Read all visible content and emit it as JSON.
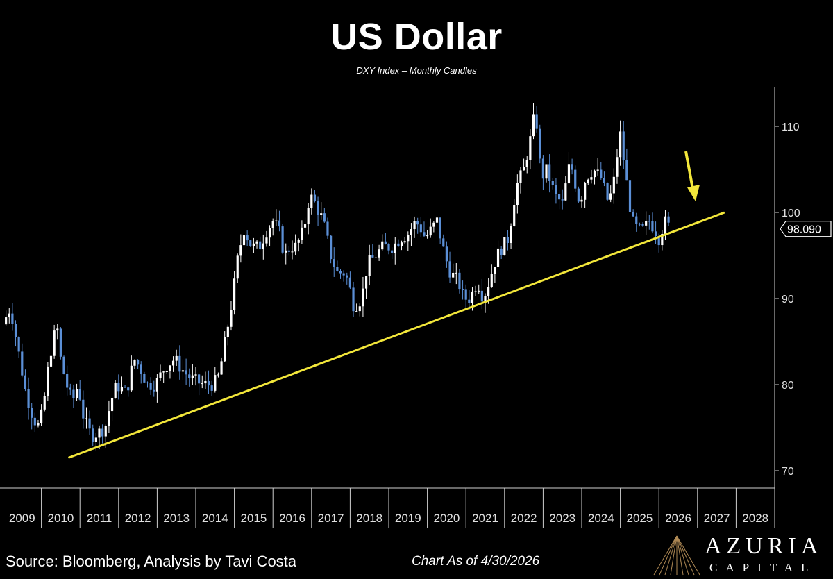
{
  "header": {
    "title": "US Dollar",
    "subtitle": "DXY Index – Monthly Candles"
  },
  "footer": {
    "source": "Source: Bloomberg, Analysis by Tavi Costa",
    "as_of": "Chart As of 4/30/2026",
    "logo_word": "AZURIA",
    "logo_sub": "CAPITAL"
  },
  "colors": {
    "background": "#000000",
    "up_candle": "#ffffff",
    "down_candle": "#5b8fd6",
    "trendline": "#f2e63a",
    "arrow": "#f2e63a",
    "axis": "#cfcfcf"
  },
  "chart_data": {
    "type": "candlestick",
    "x_ticks": [
      "2009",
      "2010",
      "2011",
      "2012",
      "2013",
      "2014",
      "2015",
      "2016",
      "2017",
      "2018",
      "2019",
      "2020",
      "2021",
      "2022",
      "2023",
      "2024",
      "2025",
      "2026",
      "2027",
      "2028"
    ],
    "y_ticks": [
      70,
      80,
      90,
      100,
      110
    ],
    "ylim": [
      68,
      114
    ],
    "xlim": [
      2009.0,
      2029.0
    ],
    "last_value_label": "98.090",
    "last_value": 98.09,
    "y_axis_side": "right",
    "grid": false,
    "series": {
      "approximate_monthly_close": [
        [
          2009.0,
          87
        ],
        [
          2009.2,
          89
        ],
        [
          2009.4,
          84
        ],
        [
          2009.6,
          79
        ],
        [
          2009.8,
          76
        ],
        [
          2009.95,
          75
        ],
        [
          2010.1,
          79
        ],
        [
          2010.2,
          83
        ],
        [
          2010.4,
          87
        ],
        [
          2010.5,
          83
        ],
        [
          2010.65,
          80
        ],
        [
          2010.8,
          78
        ],
        [
          2010.95,
          80
        ],
        [
          2011.1,
          76
        ],
        [
          2011.3,
          74
        ],
        [
          2011.5,
          74.5
        ],
        [
          2011.65,
          75
        ],
        [
          2011.8,
          78
        ],
        [
          2011.95,
          80
        ],
        [
          2012.2,
          79
        ],
        [
          2012.4,
          83
        ],
        [
          2012.55,
          82
        ],
        [
          2012.75,
          80
        ],
        [
          2012.95,
          80
        ],
        [
          2013.2,
          82
        ],
        [
          2013.45,
          83
        ],
        [
          2013.6,
          82
        ],
        [
          2013.8,
          81
        ],
        [
          2013.95,
          80.5
        ],
        [
          2014.2,
          80
        ],
        [
          2014.45,
          80
        ],
        [
          2014.6,
          81
        ],
        [
          2014.8,
          86
        ],
        [
          2014.95,
          90
        ],
        [
          2015.1,
          95
        ],
        [
          2015.25,
          98
        ],
        [
          2015.45,
          96
        ],
        [
          2015.65,
          96
        ],
        [
          2015.85,
          98
        ],
        [
          2016.0,
          99
        ],
        [
          2016.15,
          98
        ],
        [
          2016.3,
          95
        ],
        [
          2016.45,
          96
        ],
        [
          2016.6,
          96
        ],
        [
          2016.8,
          98
        ],
        [
          2016.95,
          102
        ],
        [
          2017.1,
          101
        ],
        [
          2017.3,
          99
        ],
        [
          2017.5,
          95
        ],
        [
          2017.65,
          93
        ],
        [
          2017.85,
          93
        ],
        [
          2017.95,
          92
        ],
        [
          2018.1,
          89
        ],
        [
          2018.3,
          90
        ],
        [
          2018.45,
          94
        ],
        [
          2018.65,
          95
        ],
        [
          2018.85,
          96
        ],
        [
          2019.1,
          96
        ],
        [
          2019.3,
          97
        ],
        [
          2019.5,
          97.5
        ],
        [
          2019.7,
          99
        ],
        [
          2019.85,
          98
        ],
        [
          2019.95,
          97
        ],
        [
          2020.1,
          98
        ],
        [
          2020.25,
          99
        ],
        [
          2020.45,
          95
        ],
        [
          2020.6,
          93
        ],
        [
          2020.8,
          92
        ],
        [
          2020.95,
          90
        ],
        [
          2021.1,
          90
        ],
        [
          2021.3,
          92
        ],
        [
          2021.45,
          90
        ],
        [
          2021.6,
          92
        ],
        [
          2021.8,
          95
        ],
        [
          2021.95,
          96
        ],
        [
          2022.1,
          97
        ],
        [
          2022.3,
          103
        ],
        [
          2022.5,
          105
        ],
        [
          2022.65,
          108
        ],
        [
          2022.8,
          112
        ],
        [
          2022.95,
          104
        ],
        [
          2023.1,
          105
        ],
        [
          2023.3,
          102
        ],
        [
          2023.5,
          101
        ],
        [
          2023.7,
          106
        ],
        [
          2023.85,
          103
        ],
        [
          2023.95,
          101
        ],
        [
          2024.1,
          104
        ],
        [
          2024.3,
          105
        ],
        [
          2024.5,
          104
        ],
        [
          2024.7,
          101
        ],
        [
          2024.85,
          104
        ],
        [
          2024.95,
          108
        ],
        [
          2025.0,
          109
        ],
        [
          2025.15,
          104
        ],
        [
          2025.3,
          99
        ],
        [
          2025.45,
          98
        ],
        [
          2025.6,
          98
        ],
        [
          2025.75,
          99
        ],
        [
          2025.9,
          98
        ],
        [
          2026.0,
          97
        ],
        [
          2026.15,
          99
        ],
        [
          2026.3,
          98.09
        ]
      ]
    },
    "trendline": {
      "from": [
        2010.7,
        71.5
      ],
      "to": [
        2027.7,
        100
      ]
    },
    "annotation": {
      "type": "arrow",
      "direction": "down",
      "color": "yellow"
    }
  }
}
